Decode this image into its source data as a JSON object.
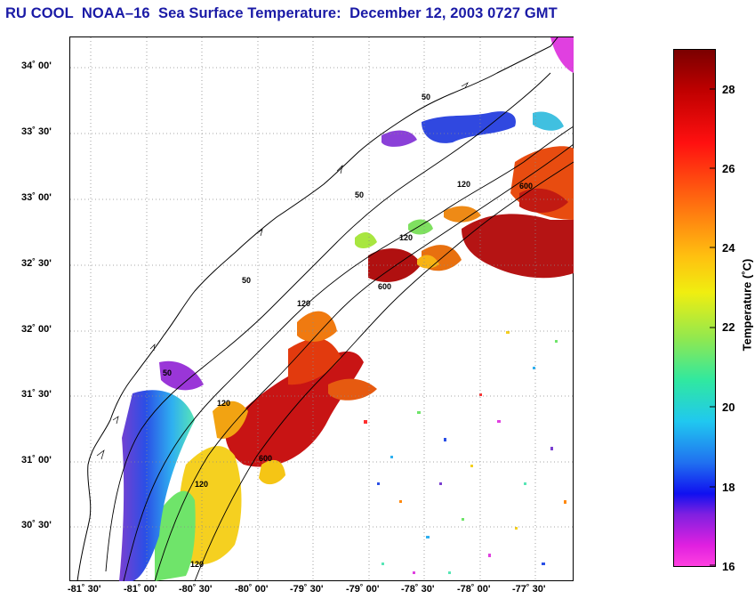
{
  "title": "RU COOL  NOAA–16  Sea Surface Temperature:  December 12, 2003 0727 GMT",
  "map": {
    "lat_labels": [
      "34˚ 00'",
      "33˚ 30'",
      "33˚ 00'",
      "32˚ 30'",
      "32˚ 00'",
      "31˚ 30'",
      "31˚ 00'",
      "30˚ 30'"
    ],
    "lon_labels": [
      "-81˚ 30'",
      "-81˚ 00'",
      "-80˚ 30'",
      "-80˚ 00'",
      "-79˚ 30'",
      "-79˚ 00'",
      "-78˚ 30'",
      "-78˚ 00'",
      "-77˚ 30'"
    ],
    "isobath_labels": [
      "50",
      "50",
      "50",
      "50",
      "120",
      "120",
      "120",
      "120",
      "120",
      "600",
      "600",
      "600",
      "120"
    ]
  },
  "colorbar": {
    "label": "Temperature (˚C)",
    "ticks": [
      "28",
      "26",
      "24",
      "22",
      "20",
      "18",
      "16"
    ],
    "min": 16,
    "max": 29
  }
}
